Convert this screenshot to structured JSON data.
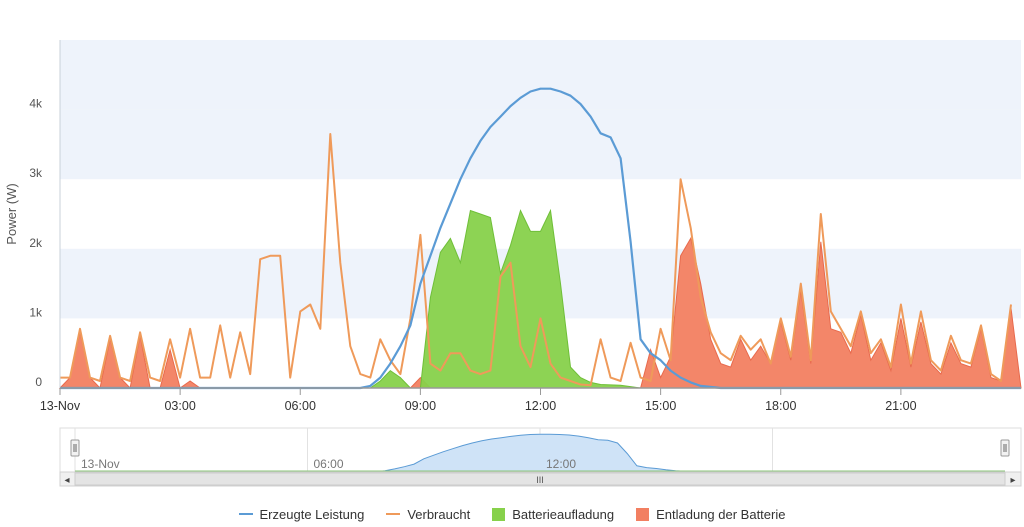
{
  "chart_data": {
    "type": "area",
    "title": "",
    "ylabel": "Power (W)",
    "xlabel": "",
    "ylim": [
      0,
      5000
    ],
    "x_start": "13-Nov 00:00",
    "x_end": "13-Nov 23:59",
    "x_tick_labels": [
      "13-Nov",
      "03:00",
      "06:00",
      "09:00",
      "12:00",
      "15:00",
      "18:00",
      "21:00"
    ],
    "x_tick_hours": [
      0,
      3,
      6,
      9,
      12,
      15,
      18,
      21
    ],
    "y_ticks": [
      0,
      1000,
      2000,
      3000,
      4000
    ],
    "y_tick_labels": [
      "0",
      "1k",
      "2k",
      "3k",
      "4k"
    ],
    "grid": "alternating horizontal bands",
    "legend_position": "bottom-center",
    "series": [
      {
        "name": "Erzeugte Leistung",
        "type": "line",
        "color": "#5b9bd5",
        "points": [
          [
            0.0,
            0
          ],
          [
            7.5,
            0
          ],
          [
            7.75,
            30
          ],
          [
            8.0,
            150
          ],
          [
            8.25,
            350
          ],
          [
            8.5,
            600
          ],
          [
            8.75,
            900
          ],
          [
            9.0,
            1500
          ],
          [
            9.25,
            1900
          ],
          [
            9.5,
            2300
          ],
          [
            9.75,
            2650
          ],
          [
            10.0,
            3000
          ],
          [
            10.25,
            3300
          ],
          [
            10.5,
            3550
          ],
          [
            10.75,
            3750
          ],
          [
            11.0,
            3900
          ],
          [
            11.25,
            4050
          ],
          [
            11.5,
            4170
          ],
          [
            11.75,
            4260
          ],
          [
            12.0,
            4300
          ],
          [
            12.25,
            4300
          ],
          [
            12.5,
            4260
          ],
          [
            12.75,
            4200
          ],
          [
            13.0,
            4080
          ],
          [
            13.25,
            3900
          ],
          [
            13.5,
            3660
          ],
          [
            13.75,
            3600
          ],
          [
            14.0,
            3300
          ],
          [
            14.25,
            2100
          ],
          [
            14.5,
            700
          ],
          [
            14.75,
            500
          ],
          [
            15.0,
            400
          ],
          [
            15.25,
            250
          ],
          [
            15.5,
            150
          ],
          [
            15.75,
            80
          ],
          [
            16.0,
            30
          ],
          [
            16.5,
            0
          ],
          [
            24.0,
            0
          ]
        ]
      },
      {
        "name": "Verbraucht",
        "type": "line",
        "color": "#ef9a5a",
        "points": [
          [
            0.0,
            150
          ],
          [
            0.25,
            150
          ],
          [
            0.5,
            850
          ],
          [
            0.75,
            150
          ],
          [
            1.0,
            100
          ],
          [
            1.25,
            750
          ],
          [
            1.5,
            150
          ],
          [
            1.75,
            100
          ],
          [
            2.0,
            800
          ],
          [
            2.25,
            150
          ],
          [
            2.5,
            100
          ],
          [
            2.75,
            700
          ],
          [
            3.0,
            150
          ],
          [
            3.25,
            850
          ],
          [
            3.5,
            150
          ],
          [
            3.75,
            150
          ],
          [
            4.0,
            900
          ],
          [
            4.25,
            150
          ],
          [
            4.5,
            800
          ],
          [
            4.75,
            200
          ],
          [
            5.0,
            1850
          ],
          [
            5.25,
            1900
          ],
          [
            5.5,
            1900
          ],
          [
            5.75,
            150
          ],
          [
            6.0,
            1100
          ],
          [
            6.25,
            1200
          ],
          [
            6.5,
            850
          ],
          [
            6.75,
            3650
          ],
          [
            7.0,
            1800
          ],
          [
            7.25,
            600
          ],
          [
            7.5,
            200
          ],
          [
            7.75,
            150
          ],
          [
            8.0,
            700
          ],
          [
            8.25,
            400
          ],
          [
            8.5,
            200
          ],
          [
            8.75,
            1000
          ],
          [
            9.0,
            2200
          ],
          [
            9.25,
            350
          ],
          [
            9.5,
            250
          ],
          [
            9.75,
            500
          ],
          [
            10.0,
            500
          ],
          [
            10.25,
            250
          ],
          [
            10.5,
            200
          ],
          [
            10.75,
            250
          ],
          [
            11.0,
            1600
          ],
          [
            11.25,
            1800
          ],
          [
            11.5,
            600
          ],
          [
            11.75,
            300
          ],
          [
            12.0,
            1000
          ],
          [
            12.25,
            350
          ],
          [
            12.5,
            150
          ],
          [
            12.75,
            100
          ],
          [
            13.0,
            50
          ],
          [
            13.25,
            40
          ],
          [
            13.5,
            700
          ],
          [
            13.75,
            150
          ],
          [
            14.0,
            100
          ],
          [
            14.25,
            650
          ],
          [
            14.5,
            150
          ],
          [
            14.75,
            100
          ],
          [
            15.0,
            850
          ],
          [
            15.25,
            400
          ],
          [
            15.5,
            3000
          ],
          [
            15.75,
            2300
          ],
          [
            16.0,
            1300
          ],
          [
            16.25,
            800
          ],
          [
            16.5,
            500
          ],
          [
            16.75,
            400
          ],
          [
            17.0,
            750
          ],
          [
            17.25,
            550
          ],
          [
            17.5,
            700
          ],
          [
            17.75,
            350
          ],
          [
            18.0,
            1000
          ],
          [
            18.25,
            450
          ],
          [
            18.5,
            1500
          ],
          [
            18.75,
            400
          ],
          [
            19.0,
            2500
          ],
          [
            19.25,
            1100
          ],
          [
            19.5,
            850
          ],
          [
            19.75,
            600
          ],
          [
            20.0,
            1100
          ],
          [
            20.25,
            500
          ],
          [
            20.5,
            700
          ],
          [
            20.75,
            300
          ],
          [
            21.0,
            1200
          ],
          [
            21.25,
            350
          ],
          [
            21.5,
            1100
          ],
          [
            21.75,
            400
          ],
          [
            22.0,
            250
          ],
          [
            22.25,
            750
          ],
          [
            22.5,
            400
          ],
          [
            22.75,
            350
          ],
          [
            23.0,
            900
          ],
          [
            23.25,
            200
          ],
          [
            23.5,
            100
          ],
          [
            23.75,
            1200
          ]
        ]
      },
      {
        "name": "Batterieaufladung",
        "type": "area",
        "color": "#87d14b",
        "points": [
          [
            7.75,
            0
          ],
          [
            8.0,
            100
          ],
          [
            8.25,
            250
          ],
          [
            8.5,
            150
          ],
          [
            8.75,
            0
          ],
          [
            9.0,
            0
          ],
          [
            9.25,
            1300
          ],
          [
            9.5,
            1950
          ],
          [
            9.75,
            2150
          ],
          [
            10.0,
            1800
          ],
          [
            10.25,
            2550
          ],
          [
            10.5,
            2500
          ],
          [
            10.75,
            2450
          ],
          [
            11.0,
            1650
          ],
          [
            11.25,
            2050
          ],
          [
            11.5,
            2550
          ],
          [
            11.75,
            2250
          ],
          [
            12.0,
            2250
          ],
          [
            12.25,
            2550
          ],
          [
            12.5,
            1500
          ],
          [
            12.75,
            300
          ],
          [
            13.0,
            150
          ],
          [
            13.25,
            80
          ],
          [
            13.5,
            50
          ],
          [
            14.0,
            40
          ],
          [
            14.5,
            0
          ]
        ]
      },
      {
        "name": "Entladung der Batterie",
        "type": "area",
        "color": "#f27f61",
        "points": [
          [
            0.0,
            0
          ],
          [
            0.25,
            150
          ],
          [
            0.5,
            800
          ],
          [
            0.75,
            150
          ],
          [
            1.0,
            0
          ],
          [
            1.25,
            700
          ],
          [
            1.5,
            150
          ],
          [
            1.75,
            0
          ],
          [
            2.0,
            750
          ],
          [
            2.25,
            0
          ],
          [
            2.5,
            0
          ],
          [
            2.75,
            550
          ],
          [
            3.0,
            0
          ],
          [
            3.25,
            100
          ],
          [
            3.5,
            0
          ],
          [
            8.75,
            0
          ],
          [
            9.0,
            150
          ],
          [
            9.25,
            0
          ],
          [
            14.5,
            0
          ],
          [
            14.75,
            550
          ],
          [
            15.0,
            150
          ],
          [
            15.25,
            450
          ],
          [
            15.5,
            1900
          ],
          [
            15.75,
            2150
          ],
          [
            16.0,
            1500
          ],
          [
            16.25,
            700
          ],
          [
            16.5,
            350
          ],
          [
            16.75,
            300
          ],
          [
            17.0,
            700
          ],
          [
            17.25,
            400
          ],
          [
            17.5,
            600
          ],
          [
            17.75,
            350
          ],
          [
            18.0,
            950
          ],
          [
            18.25,
            400
          ],
          [
            18.5,
            1400
          ],
          [
            18.75,
            350
          ],
          [
            19.0,
            2100
          ],
          [
            19.25,
            850
          ],
          [
            19.5,
            800
          ],
          [
            19.75,
            500
          ],
          [
            20.0,
            1050
          ],
          [
            20.25,
            400
          ],
          [
            20.5,
            650
          ],
          [
            20.75,
            250
          ],
          [
            21.0,
            1000
          ],
          [
            21.25,
            300
          ],
          [
            21.5,
            950
          ],
          [
            21.75,
            350
          ],
          [
            22.0,
            200
          ],
          [
            22.25,
            650
          ],
          [
            22.5,
            350
          ],
          [
            22.75,
            300
          ],
          [
            23.0,
            850
          ],
          [
            23.25,
            150
          ],
          [
            23.5,
            100
          ],
          [
            23.75,
            1150
          ],
          [
            24.0,
            0
          ]
        ]
      }
    ],
    "navigator": {
      "tick_labels": [
        "13-Nov",
        "06:00",
        "12:00"
      ],
      "tick_hours": [
        0,
        6,
        12
      ],
      "grid_hours": [
        0,
        6,
        12,
        18
      ],
      "series_color": "#5b9bd5"
    }
  },
  "scrollbar": {
    "left_arrow": "◂",
    "right_arrow": "▸",
    "grip": "III"
  },
  "legend": [
    {
      "label": "Erzeugte Leistung",
      "color": "#5b9bd5",
      "kind": "line"
    },
    {
      "label": "Verbraucht",
      "color": "#ef9a5a",
      "kind": "line"
    },
    {
      "label": "Batterieaufladung",
      "color": "#87d14b",
      "kind": "box"
    },
    {
      "label": "Entladung der Batterie",
      "color": "#f27f61",
      "kind": "box"
    }
  ]
}
